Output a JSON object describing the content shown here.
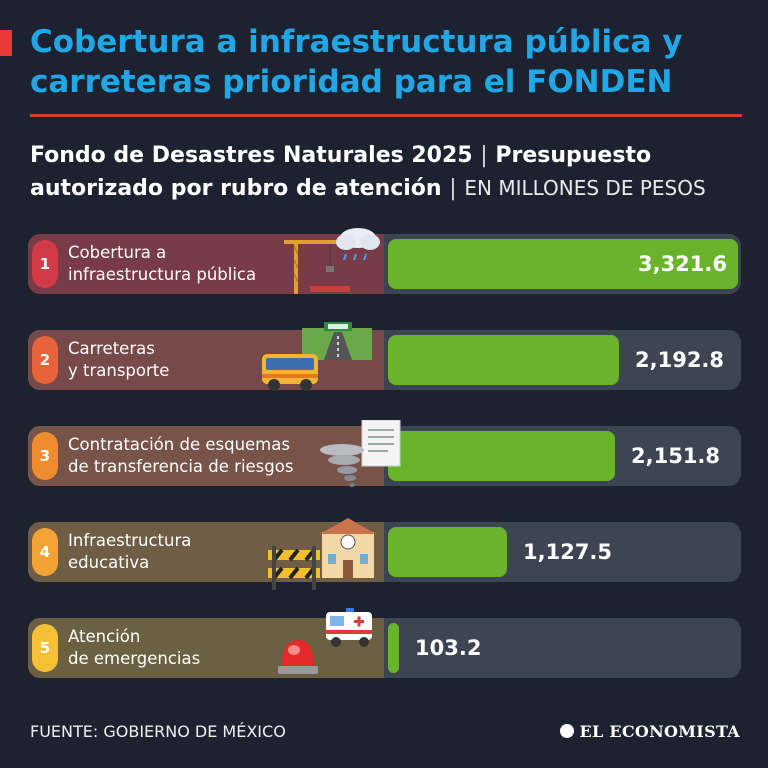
{
  "header": {
    "title": "Cobertura a infraestructura pública y carreteras prioridad para el FONDEN",
    "subtitle_part1": "Fondo de Desastres Naturales 2025",
    "subtitle_sep": "|",
    "subtitle_part2": "Presupuesto autorizado por rubro de atención",
    "subtitle_units": "EN MILLONES DE PESOS"
  },
  "colors": {
    "background": "#1c2230",
    "title": "#22a7e6",
    "bar": "#6ab42c",
    "accent_red": "#d23a3a"
  },
  "chart_data": {
    "type": "bar",
    "orientation": "horizontal",
    "title": "Fondo de Desastres Naturales 2025 | Presupuesto autorizado por rubro de atención",
    "units": "EN MILLONES DE PESOS",
    "categories": [
      "Cobertura a infraestructura pública",
      "Carreteras y transporte",
      "Contratación de esquemas de transferencia de riesgos",
      "Infraestructura educativa",
      "Atención de emergencias"
    ],
    "values": [
      3321.6,
      2192.8,
      2151.8,
      1127.5,
      103.2
    ],
    "xlim": [
      0,
      3321.6
    ],
    "items": [
      {
        "rank": "1",
        "line1": "Cobertura a",
        "line2": "infraestructura pública",
        "value_label": "3,321.6",
        "value": 3321.6,
        "badge_color": "#d23a48",
        "row_color": "#7a3b48",
        "icon": "crane-storm-icon"
      },
      {
        "rank": "2",
        "line1": "Carreteras",
        "line2": "y transporte",
        "value_label": "2,192.8",
        "value": 2192.8,
        "badge_color": "#e8633a",
        "row_color": "#774a49",
        "icon": "bus-highway-icon"
      },
      {
        "rank": "3",
        "line1": "Contratación de esquemas",
        "line2": "de transferencia de riesgos",
        "value_label": "2,151.8",
        "value": 2151.8,
        "badge_color": "#f08c30",
        "row_color": "#785448",
        "icon": "document-tornado-icon"
      },
      {
        "rank": "4",
        "line1": "Infraestructura",
        "line2": "educativa",
        "value_label": "1,127.5",
        "value": 1127.5,
        "badge_color": "#f2a334",
        "row_color": "#6f5e45",
        "icon": "school-barrier-icon"
      },
      {
        "rank": "5",
        "line1": "Atención",
        "line2": "de emergencias",
        "value_label": "103.2",
        "value": 103.2,
        "badge_color": "#f5bf36",
        "row_color": "#6b6142",
        "icon": "ambulance-siren-icon"
      }
    ]
  },
  "footer": {
    "source": "FUENTE: GOBIERNO DE MÉXICO",
    "brand": "EL ECONOMISTA"
  }
}
